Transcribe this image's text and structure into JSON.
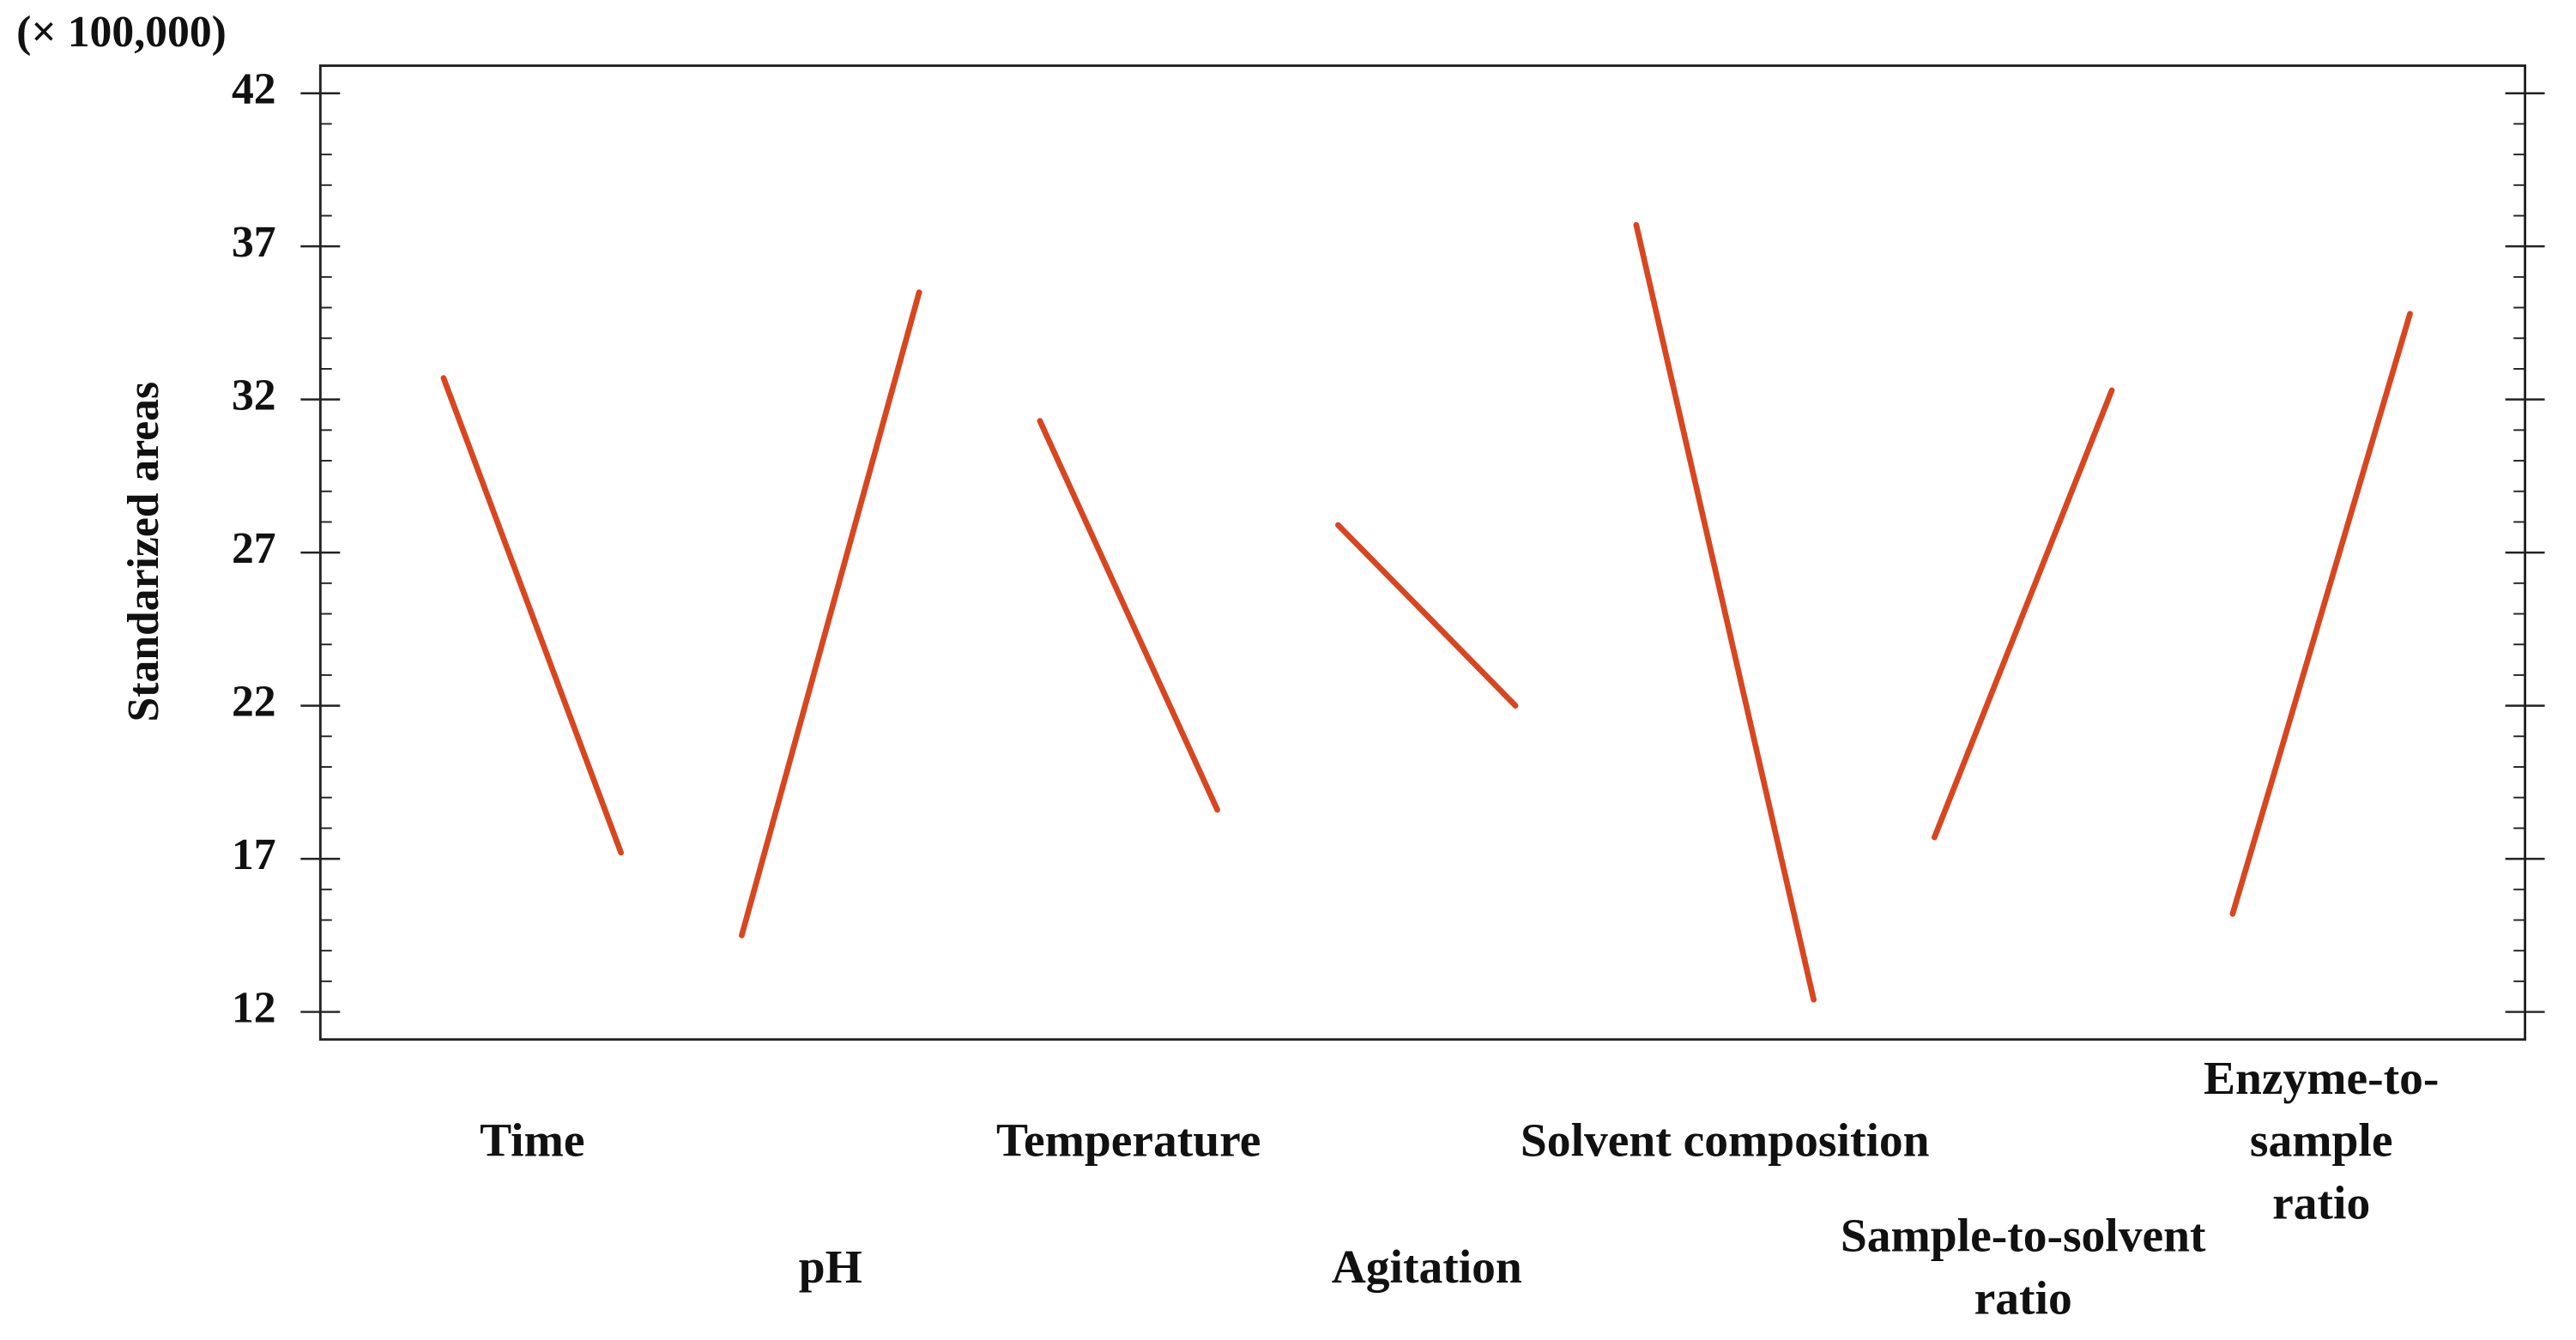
{
  "chart_data": {
    "type": "main-effects",
    "y_unit_label": "(× 100,000)",
    "y_label": "Standarized areas",
    "categories": [
      "Time",
      "pH",
      "Temperature",
      "Agitation",
      "Solvent composition",
      "Sample-to-solvent\nratio",
      "Enzyme-to-sample\nratio"
    ],
    "values": [
      [
        32.7,
        17.2
      ],
      [
        14.5,
        35.5
      ],
      [
        31.3,
        18.6
      ],
      [
        27.9,
        22.0
      ],
      [
        37.7,
        12.4
      ],
      [
        17.7,
        32.3
      ],
      [
        15.2,
        34.8
      ]
    ],
    "color": "#d8461f",
    "ylim": [
      11.1,
      42.9
    ],
    "yticks": [
      12,
      17,
      22,
      27,
      32,
      37,
      42
    ],
    "yticks_minor": [
      13,
      14,
      15,
      16,
      18,
      19,
      20,
      21,
      23,
      24,
      25,
      26,
      28,
      29,
      30,
      31,
      33,
      34,
      35,
      36,
      38,
      39,
      40,
      41
    ]
  }
}
